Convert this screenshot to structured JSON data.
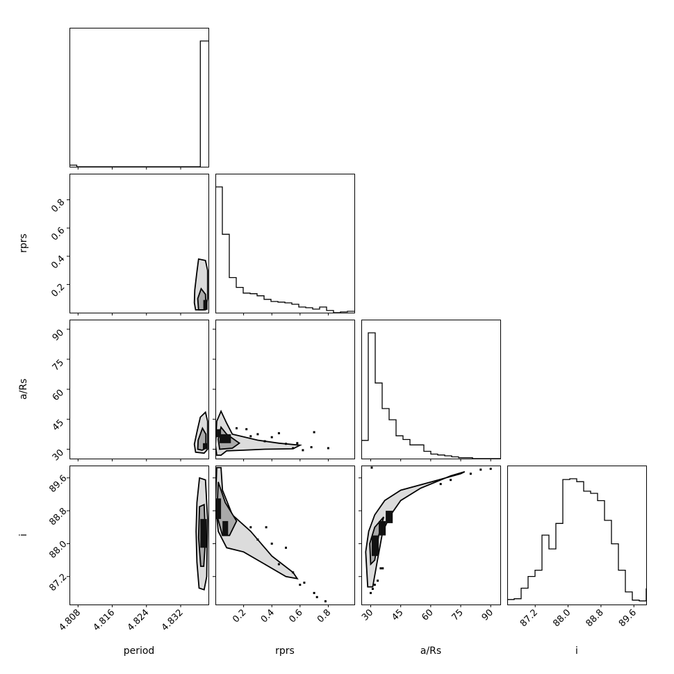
{
  "chart_data": {
    "type": "corner",
    "parameters": [
      "period",
      "rprs",
      "a/Rs",
      "i"
    ],
    "axis_labels": {
      "x": [
        "period",
        "rprs",
        "a/Rs",
        "i"
      ],
      "y": [
        "",
        "rprs",
        "a/Rs",
        "i"
      ]
    },
    "ranges": [
      [
        4.806,
        4.8385
      ],
      [
        0.0,
        0.985
      ],
      [
        25.3,
        94.8
      ],
      [
        86.52,
        89.9
      ]
    ],
    "ticks": [
      [
        4.808,
        4.816,
        4.824,
        4.832
      ],
      [
        0.2,
        0.4,
        0.6,
        0.8
      ],
      [
        30,
        45,
        60,
        75,
        90
      ],
      [
        87.2,
        88.0,
        88.8,
        89.6
      ]
    ],
    "tick_labels": [
      [
        "4.808",
        "4.816",
        "4.824",
        "4.832"
      ],
      [
        "0.2",
        "0.4",
        "0.6",
        "0.8"
      ],
      [
        "30",
        "45",
        "60",
        "75",
        "90"
      ],
      [
        "87.2",
        "88.0",
        "88.8",
        "89.6"
      ]
    ],
    "histograms": [
      {
        "parameter": "period",
        "bin_edges": [
          4.806,
          4.8077,
          4.8094,
          4.8111,
          4.8128,
          4.8145,
          4.8162,
          4.8179,
          4.8196,
          4.8213,
          4.823,
          4.8247,
          4.8264,
          4.8281,
          4.8298,
          4.8315,
          4.8332,
          4.8349,
          4.8366,
          4.8385
        ],
        "counts": [
          0.013,
          0.0,
          0.0,
          0.0,
          0.0,
          0.0,
          0.0,
          0.0,
          0.0,
          0.0,
          0.0,
          0.0,
          0.0,
          0.0,
          0.0,
          0.0,
          0.0,
          0.0,
          1.0
        ]
      },
      {
        "parameter": "rprs",
        "x_start": 0.0,
        "bin_width": 0.04925,
        "counts": [
          1.0,
          0.623,
          0.279,
          0.201,
          0.156,
          0.151,
          0.134,
          0.106,
          0.089,
          0.084,
          0.078,
          0.067,
          0.045,
          0.039,
          0.028,
          0.045,
          0.017,
          0.0,
          0.006,
          0.011
        ]
      },
      {
        "parameter": "a/Rs",
        "x_start": 25.3,
        "bin_width": 3.475,
        "counts": [
          0.145,
          1.0,
          0.601,
          0.398,
          0.309,
          0.181,
          0.152,
          0.109,
          0.109,
          0.058,
          0.036,
          0.029,
          0.022,
          0.014,
          0.007,
          0.007,
          0.0,
          0.0,
          0.0,
          0.0
        ]
      },
      {
        "parameter": "i",
        "x_start": 86.52,
        "bin_width": 0.169,
        "counts": [
          0.04,
          0.046,
          0.13,
          0.223,
          0.273,
          0.552,
          0.442,
          0.645,
          0.994,
          1.0,
          0.977,
          0.901,
          0.884,
          0.826,
          0.669,
          0.483,
          0.273,
          0.1,
          0.035,
          0.029,
          0.128
        ]
      }
    ],
    "pairs": [
      {
        "x": "period",
        "y": "rprs",
        "contours": [
          [
            [
              4.8355,
              0.02
            ],
            [
              4.8352,
              0.07
            ],
            [
              4.8353,
              0.16
            ],
            [
              4.8358,
              0.29
            ],
            [
              4.8362,
              0.38
            ],
            [
              4.8378,
              0.37
            ],
            [
              4.8383,
              0.3
            ],
            [
              4.8383,
              0.1
            ],
            [
              4.8378,
              0.02
            ]
          ],
          [
            [
              4.8362,
              0.02
            ],
            [
              4.836,
              0.1
            ],
            [
              4.8368,
              0.17
            ],
            [
              4.8378,
              0.13
            ],
            [
              4.8379,
              0.04
            ],
            [
              4.8375,
              0.02
            ]
          ]
        ],
        "blocks": [
          [
            4.8373,
            4.8383,
            0.02,
            0.09
          ]
        ]
      },
      {
        "x": "period",
        "y": "a/Rs",
        "contours": [
          [
            [
              4.8355,
              28.5
            ],
            [
              4.8352,
              32.5
            ],
            [
              4.8359,
              39.5
            ],
            [
              4.8366,
              46.0
            ],
            [
              4.8378,
              48.5
            ],
            [
              4.8383,
              44.0
            ],
            [
              4.8383,
              30.0
            ],
            [
              4.8375,
              28.0
            ]
          ],
          [
            [
              4.836,
              30.0
            ],
            [
              4.8361,
              34.5
            ],
            [
              4.8371,
              40.5
            ],
            [
              4.8379,
              37.5
            ],
            [
              4.8379,
              30.5
            ],
            [
              4.837,
              29.5
            ]
          ]
        ],
        "blocks": [
          [
            4.8372,
            4.8383,
            30.0,
            33.0
          ]
        ]
      },
      {
        "x": "period",
        "y": "i",
        "contours": [
          [
            [
              4.8363,
              86.92
            ],
            [
              4.8358,
              87.55
            ],
            [
              4.8356,
              88.3
            ],
            [
              4.8358,
              89.0
            ],
            [
              4.8364,
              89.6
            ],
            [
              4.8378,
              89.55
            ],
            [
              4.8383,
              88.6
            ],
            [
              4.8381,
              87.2
            ],
            [
              4.8375,
              86.88
            ]
          ],
          [
            [
              4.8367,
              87.45
            ],
            [
              4.8362,
              88.15
            ],
            [
              4.8364,
              88.9
            ],
            [
              4.8375,
              88.95
            ],
            [
              4.8378,
              88.1
            ],
            [
              4.8374,
              87.45
            ]
          ]
        ],
        "blocks": [
          [
            4.8366,
            4.8381,
            87.9,
            88.6
          ]
        ]
      },
      {
        "x": "rprs",
        "y": "a/Rs",
        "contours": [
          [
            [
              0.01,
              27.0
            ],
            [
              0.0,
              32.0
            ],
            [
              0.01,
              44.0
            ],
            [
              0.04,
              49.0
            ],
            [
              0.08,
              43.0
            ],
            [
              0.12,
              37.5
            ],
            [
              0.3,
              34.5
            ],
            [
              0.45,
              33.0
            ],
            [
              0.6,
              32.0
            ],
            [
              0.55,
              30.2
            ],
            [
              0.35,
              30.0
            ],
            [
              0.2,
              29.5
            ],
            [
              0.08,
              29.2
            ],
            [
              0.04,
              27.0
            ]
          ],
          [
            [
              0.03,
              30.0
            ],
            [
              0.02,
              35.0
            ],
            [
              0.04,
              41.0
            ],
            [
              0.08,
              37.5
            ],
            [
              0.17,
              33.0
            ],
            [
              0.12,
              30.5
            ]
          ]
        ],
        "blocks": [
          [
            0.03,
            0.11,
            33.0,
            37.5
          ],
          [
            0.0,
            0.04,
            36.0,
            40.0
          ]
        ],
        "points": [
          [
            0.5,
            32.7
          ],
          [
            0.55,
            30.5
          ],
          [
            0.68,
            31.0
          ],
          [
            0.4,
            36.0
          ],
          [
            0.3,
            37.5
          ],
          [
            0.22,
            40.0
          ],
          [
            0.15,
            40.5
          ],
          [
            0.7,
            38.5
          ],
          [
            0.58,
            33.0
          ],
          [
            0.62,
            29.5
          ],
          [
            0.8,
            30.5
          ],
          [
            0.45,
            38.0
          ],
          [
            0.35,
            34.0
          ],
          [
            0.25,
            36.5
          ]
        ]
      },
      {
        "x": "rprs",
        "y": "i",
        "contours": [
          [
            [
              0.01,
              89.85
            ],
            [
              0.0,
              89.0
            ],
            [
              0.02,
              88.3
            ],
            [
              0.08,
              87.9
            ],
            [
              0.2,
              87.8
            ],
            [
              0.35,
              87.5
            ],
            [
              0.5,
              87.2
            ],
            [
              0.58,
              87.15
            ],
            [
              0.55,
              87.3
            ],
            [
              0.4,
              87.7
            ],
            [
              0.25,
              88.3
            ],
            [
              0.12,
              88.7
            ],
            [
              0.05,
              89.3
            ],
            [
              0.04,
              89.85
            ]
          ],
          [
            [
              0.02,
              89.5
            ],
            [
              0.01,
              88.7
            ],
            [
              0.05,
              88.2
            ],
            [
              0.1,
              88.2
            ],
            [
              0.15,
              88.55
            ],
            [
              0.07,
              89.0
            ]
          ]
        ],
        "blocks": [
          [
            0.0,
            0.04,
            88.6,
            89.1
          ],
          [
            0.05,
            0.09,
            88.2,
            88.55
          ]
        ],
        "points": [
          [
            0.3,
            88.1
          ],
          [
            0.45,
            87.5
          ],
          [
            0.6,
            87.0
          ],
          [
            0.7,
            86.8
          ],
          [
            0.78,
            86.6
          ],
          [
            0.5,
            87.9
          ],
          [
            0.36,
            88.4
          ],
          [
            0.55,
            87.3
          ],
          [
            0.63,
            87.05
          ],
          [
            0.72,
            86.7
          ],
          [
            0.4,
            88.0
          ],
          [
            0.25,
            88.4
          ]
        ]
      },
      {
        "x": "a/Rs",
        "y": "i",
        "contours": [
          [
            [
              28.5,
              86.95
            ],
            [
              27.5,
              87.8
            ],
            [
              29.0,
              88.3
            ],
            [
              32.0,
              88.7
            ],
            [
              37.0,
              89.05
            ],
            [
              45.0,
              89.3
            ],
            [
              60.0,
              89.5
            ],
            [
              75.0,
              89.7
            ],
            [
              77.0,
              89.75
            ],
            [
              70.0,
              89.65
            ],
            [
              55.0,
              89.35
            ],
            [
              45.0,
              89.05
            ],
            [
              40.0,
              88.7
            ],
            [
              36.0,
              88.3
            ],
            [
              33.0,
              87.5
            ],
            [
              31.0,
              86.95
            ]
          ],
          [
            [
              30.0,
              87.5
            ],
            [
              29.5,
              88.0
            ],
            [
              32.0,
              88.4
            ],
            [
              36.5,
              88.65
            ],
            [
              34.0,
              88.2
            ],
            [
              32.0,
              87.6
            ]
          ]
        ],
        "blocks": [
          [
            30.5,
            34.0,
            87.7,
            88.2
          ],
          [
            34.0,
            37.5,
            88.2,
            88.55
          ],
          [
            37.5,
            41.0,
            88.5,
            88.8
          ]
        ],
        "points": [
          [
            30.5,
            89.85
          ],
          [
            32.0,
            87.0
          ],
          [
            33.5,
            87.1
          ],
          [
            35.0,
            87.4
          ],
          [
            80.0,
            89.7
          ],
          [
            85.0,
            89.8
          ],
          [
            90.0,
            89.82
          ],
          [
            65.0,
            89.45
          ],
          [
            70.0,
            89.55
          ],
          [
            31.0,
            86.9
          ],
          [
            30.0,
            86.8
          ],
          [
            36.0,
            87.4
          ]
        ]
      }
    ]
  }
}
